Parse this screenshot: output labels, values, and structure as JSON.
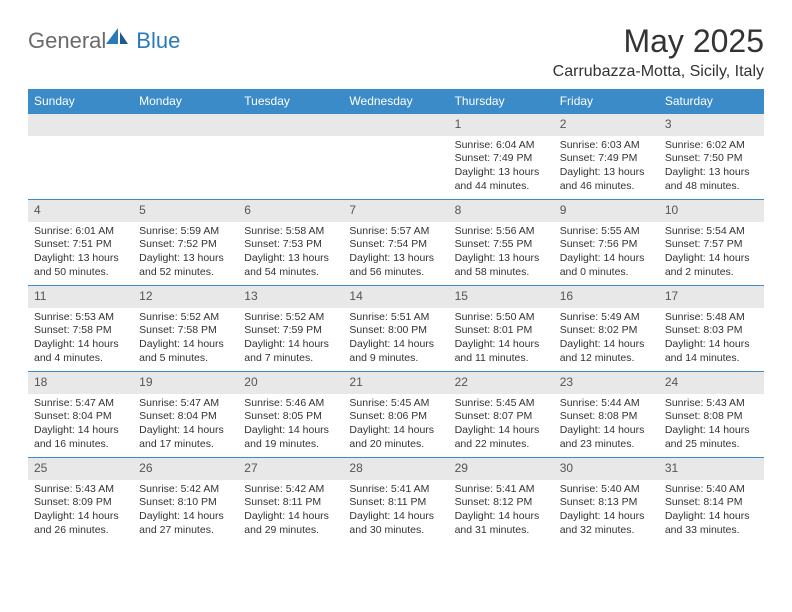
{
  "logo": {
    "general": "General",
    "blue": "Blue"
  },
  "title": "May 2025",
  "location": "Carrubazza-Motta, Sicily, Italy",
  "day_headers": [
    "Sunday",
    "Monday",
    "Tuesday",
    "Wednesday",
    "Thursday",
    "Friday",
    "Saturday"
  ],
  "colors": {
    "header_bg": "#3b8bc8",
    "header_text": "#ffffff",
    "daynum_bg": "#e8e8e8",
    "text": "#333333",
    "row_border": "#3b8bc8"
  },
  "weeks": [
    [
      {
        "n": "",
        "lines": []
      },
      {
        "n": "",
        "lines": []
      },
      {
        "n": "",
        "lines": []
      },
      {
        "n": "",
        "lines": []
      },
      {
        "n": "1",
        "lines": [
          "Sunrise: 6:04 AM",
          "Sunset: 7:49 PM",
          "Daylight: 13 hours and 44 minutes."
        ]
      },
      {
        "n": "2",
        "lines": [
          "Sunrise: 6:03 AM",
          "Sunset: 7:49 PM",
          "Daylight: 13 hours and 46 minutes."
        ]
      },
      {
        "n": "3",
        "lines": [
          "Sunrise: 6:02 AM",
          "Sunset: 7:50 PM",
          "Daylight: 13 hours and 48 minutes."
        ]
      }
    ],
    [
      {
        "n": "4",
        "lines": [
          "Sunrise: 6:01 AM",
          "Sunset: 7:51 PM",
          "Daylight: 13 hours and 50 minutes."
        ]
      },
      {
        "n": "5",
        "lines": [
          "Sunrise: 5:59 AM",
          "Sunset: 7:52 PM",
          "Daylight: 13 hours and 52 minutes."
        ]
      },
      {
        "n": "6",
        "lines": [
          "Sunrise: 5:58 AM",
          "Sunset: 7:53 PM",
          "Daylight: 13 hours and 54 minutes."
        ]
      },
      {
        "n": "7",
        "lines": [
          "Sunrise: 5:57 AM",
          "Sunset: 7:54 PM",
          "Daylight: 13 hours and 56 minutes."
        ]
      },
      {
        "n": "8",
        "lines": [
          "Sunrise: 5:56 AM",
          "Sunset: 7:55 PM",
          "Daylight: 13 hours and 58 minutes."
        ]
      },
      {
        "n": "9",
        "lines": [
          "Sunrise: 5:55 AM",
          "Sunset: 7:56 PM",
          "Daylight: 14 hours and 0 minutes."
        ]
      },
      {
        "n": "10",
        "lines": [
          "Sunrise: 5:54 AM",
          "Sunset: 7:57 PM",
          "Daylight: 14 hours and 2 minutes."
        ]
      }
    ],
    [
      {
        "n": "11",
        "lines": [
          "Sunrise: 5:53 AM",
          "Sunset: 7:58 PM",
          "Daylight: 14 hours and 4 minutes."
        ]
      },
      {
        "n": "12",
        "lines": [
          "Sunrise: 5:52 AM",
          "Sunset: 7:58 PM",
          "Daylight: 14 hours and 5 minutes."
        ]
      },
      {
        "n": "13",
        "lines": [
          "Sunrise: 5:52 AM",
          "Sunset: 7:59 PM",
          "Daylight: 14 hours and 7 minutes."
        ]
      },
      {
        "n": "14",
        "lines": [
          "Sunrise: 5:51 AM",
          "Sunset: 8:00 PM",
          "Daylight: 14 hours and 9 minutes."
        ]
      },
      {
        "n": "15",
        "lines": [
          "Sunrise: 5:50 AM",
          "Sunset: 8:01 PM",
          "Daylight: 14 hours and 11 minutes."
        ]
      },
      {
        "n": "16",
        "lines": [
          "Sunrise: 5:49 AM",
          "Sunset: 8:02 PM",
          "Daylight: 14 hours and 12 minutes."
        ]
      },
      {
        "n": "17",
        "lines": [
          "Sunrise: 5:48 AM",
          "Sunset: 8:03 PM",
          "Daylight: 14 hours and 14 minutes."
        ]
      }
    ],
    [
      {
        "n": "18",
        "lines": [
          "Sunrise: 5:47 AM",
          "Sunset: 8:04 PM",
          "Daylight: 14 hours and 16 minutes."
        ]
      },
      {
        "n": "19",
        "lines": [
          "Sunrise: 5:47 AM",
          "Sunset: 8:04 PM",
          "Daylight: 14 hours and 17 minutes."
        ]
      },
      {
        "n": "20",
        "lines": [
          "Sunrise: 5:46 AM",
          "Sunset: 8:05 PM",
          "Daylight: 14 hours and 19 minutes."
        ]
      },
      {
        "n": "21",
        "lines": [
          "Sunrise: 5:45 AM",
          "Sunset: 8:06 PM",
          "Daylight: 14 hours and 20 minutes."
        ]
      },
      {
        "n": "22",
        "lines": [
          "Sunrise: 5:45 AM",
          "Sunset: 8:07 PM",
          "Daylight: 14 hours and 22 minutes."
        ]
      },
      {
        "n": "23",
        "lines": [
          "Sunrise: 5:44 AM",
          "Sunset: 8:08 PM",
          "Daylight: 14 hours and 23 minutes."
        ]
      },
      {
        "n": "24",
        "lines": [
          "Sunrise: 5:43 AM",
          "Sunset: 8:08 PM",
          "Daylight: 14 hours and 25 minutes."
        ]
      }
    ],
    [
      {
        "n": "25",
        "lines": [
          "Sunrise: 5:43 AM",
          "Sunset: 8:09 PM",
          "Daylight: 14 hours and 26 minutes."
        ]
      },
      {
        "n": "26",
        "lines": [
          "Sunrise: 5:42 AM",
          "Sunset: 8:10 PM",
          "Daylight: 14 hours and 27 minutes."
        ]
      },
      {
        "n": "27",
        "lines": [
          "Sunrise: 5:42 AM",
          "Sunset: 8:11 PM",
          "Daylight: 14 hours and 29 minutes."
        ]
      },
      {
        "n": "28",
        "lines": [
          "Sunrise: 5:41 AM",
          "Sunset: 8:11 PM",
          "Daylight: 14 hours and 30 minutes."
        ]
      },
      {
        "n": "29",
        "lines": [
          "Sunrise: 5:41 AM",
          "Sunset: 8:12 PM",
          "Daylight: 14 hours and 31 minutes."
        ]
      },
      {
        "n": "30",
        "lines": [
          "Sunrise: 5:40 AM",
          "Sunset: 8:13 PM",
          "Daylight: 14 hours and 32 minutes."
        ]
      },
      {
        "n": "31",
        "lines": [
          "Sunrise: 5:40 AM",
          "Sunset: 8:14 PM",
          "Daylight: 14 hours and 33 minutes."
        ]
      }
    ]
  ]
}
